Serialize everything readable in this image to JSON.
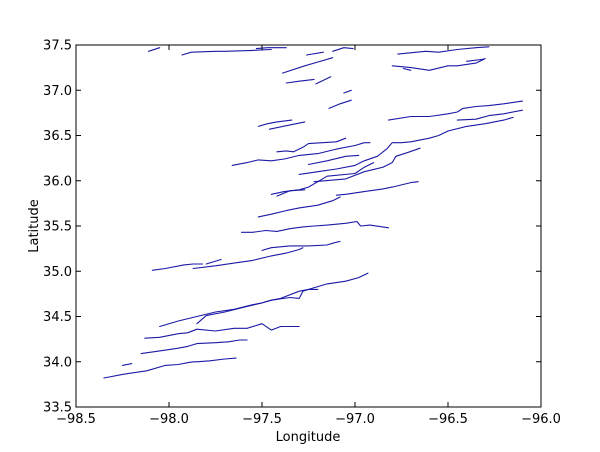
{
  "chart_data": {
    "type": "line",
    "title": "",
    "xlabel": "Longitude",
    "ylabel": "Latitude",
    "xlim": [
      -98.5,
      -96.0
    ],
    "ylim": [
      33.5,
      37.5
    ],
    "xticks": [
      -98.5,
      -98.0,
      -97.5,
      -97.0,
      -96.5,
      -96.0
    ],
    "yticks": [
      33.5,
      34.0,
      34.5,
      35.0,
      35.5,
      36.0,
      36.5,
      37.0,
      37.5
    ],
    "xtick_labels": [
      "−98.5",
      "−98.0",
      "−97.5",
      "−97.0",
      "−96.5",
      "−96.0"
    ],
    "ytick_labels": [
      "33.5",
      "34.0",
      "34.5",
      "35.0",
      "35.5",
      "36.0",
      "36.5",
      "37.0",
      "37.5"
    ],
    "grid": false,
    "line_color": "#1a1aa6",
    "series": [
      {
        "x": [
          -98.11,
          -98.05
        ],
        "y": [
          37.43,
          37.47
        ]
      },
      {
        "x": [
          -97.93,
          -97.88,
          -97.75,
          -97.7,
          -97.55,
          -97.45
        ],
        "y": [
          37.39,
          37.42,
          37.43,
          37.43,
          37.44,
          37.45
        ]
      },
      {
        "x": [
          -97.53,
          -97.47,
          -97.42,
          -97.37
        ],
        "y": [
          37.46,
          37.47,
          37.47,
          37.47
        ]
      },
      {
        "x": [
          -97.26,
          -97.17
        ],
        "y": [
          37.39,
          37.42
        ]
      },
      {
        "x": [
          -97.12,
          -97.06,
          -97.01
        ],
        "y": [
          37.43,
          37.47,
          37.46
        ]
      },
      {
        "x": [
          -96.77,
          -96.62,
          -96.55,
          -96.45
        ],
        "y": [
          37.4,
          37.43,
          37.42,
          37.45
        ]
      },
      {
        "x": [
          -96.8,
          -96.7,
          -96.6,
          -96.5,
          -96.45,
          -96.35,
          -96.3,
          -96.32,
          -96.4
        ],
        "y": [
          37.27,
          37.25,
          37.22,
          37.27,
          37.27,
          37.3,
          37.35,
          37.34,
          37.32
        ]
      },
      {
        "x": [
          -96.45,
          -96.35,
          -96.28
        ],
        "y": [
          37.45,
          37.47,
          37.48
        ]
      },
      {
        "x": [
          -96.74,
          -96.7
        ],
        "y": [
          37.24,
          37.22
        ]
      },
      {
        "x": [
          -97.39,
          -97.27,
          -97.22,
          -97.12
        ],
        "y": [
          37.19,
          37.27,
          37.3,
          37.36
        ]
      },
      {
        "x": [
          -97.37,
          -97.3,
          -97.22
        ],
        "y": [
          37.08,
          37.1,
          37.12
        ]
      },
      {
        "x": [
          -97.21,
          -97.13
        ],
        "y": [
          37.07,
          37.15
        ]
      },
      {
        "x": [
          -97.06,
          -97.02
        ],
        "y": [
          36.97,
          37.0
        ]
      },
      {
        "x": [
          -97.14,
          -97.08,
          -97.02
        ],
        "y": [
          36.8,
          36.85,
          36.89
        ]
      },
      {
        "x": [
          -97.52,
          -97.47,
          -97.42,
          -97.34
        ],
        "y": [
          36.6,
          36.63,
          36.65,
          36.67
        ]
      },
      {
        "x": [
          -97.46,
          -97.34,
          -97.27
        ],
        "y": [
          36.57,
          36.62,
          36.65
        ]
      },
      {
        "x": [
          -97.42,
          -97.37,
          -97.33,
          -97.28,
          -97.25,
          -97.1,
          -97.05
        ],
        "y": [
          36.32,
          36.33,
          36.32,
          36.37,
          36.41,
          36.43,
          36.47
        ]
      },
      {
        "x": [
          -97.66,
          -97.58,
          -97.52,
          -97.45,
          -97.38,
          -97.3,
          -97.2,
          -97.1,
          -97.0,
          -96.95,
          -96.92
        ],
        "y": [
          36.17,
          36.2,
          36.23,
          36.22,
          36.24,
          36.28,
          36.3,
          36.35,
          36.39,
          36.42,
          36.42
        ]
      },
      {
        "x": [
          -97.25,
          -97.15,
          -97.05,
          -96.98
        ],
        "y": [
          36.18,
          36.22,
          36.27,
          36.28
        ]
      },
      {
        "x": [
          -97.3,
          -97.2,
          -97.1,
          -97.0,
          -96.95,
          -96.88,
          -96.83,
          -96.8,
          -96.75,
          -96.7,
          -96.6,
          -96.55,
          -96.5,
          -96.4,
          -96.3,
          -96.2,
          -96.15
        ],
        "y": [
          36.07,
          36.1,
          36.13,
          36.17,
          36.22,
          36.27,
          36.35,
          36.42,
          36.42,
          36.43,
          36.47,
          36.5,
          36.55,
          36.6,
          36.63,
          36.67,
          36.7
        ]
      },
      {
        "x": [
          -96.82,
          -96.7,
          -96.6,
          -96.5,
          -96.45,
          -96.42,
          -96.35,
          -96.28,
          -96.2,
          -96.1
        ],
        "y": [
          36.67,
          36.71,
          36.71,
          36.74,
          36.76,
          36.8,
          36.82,
          36.83,
          36.85,
          36.88
        ]
      },
      {
        "x": [
          -96.45,
          -96.35,
          -96.28,
          -96.2,
          -96.1
        ],
        "y": [
          36.67,
          36.68,
          36.72,
          36.74,
          36.78
        ]
      },
      {
        "x": [
          -97.22,
          -97.05,
          -96.95,
          -96.85,
          -96.8,
          -96.78,
          -96.72,
          -96.65
        ],
        "y": [
          35.99,
          36.02,
          36.1,
          36.15,
          36.2,
          36.27,
          36.31,
          36.36
        ]
      },
      {
        "x": [
          -97.45,
          -97.38,
          -97.3,
          -97.25,
          -97.2,
          -97.15,
          -97.0,
          -96.95,
          -96.9
        ],
        "y": [
          35.85,
          35.88,
          35.9,
          35.93,
          35.99,
          36.05,
          36.08,
          36.15,
          36.2
        ]
      },
      {
        "x": [
          -97.42,
          -97.35,
          -97.27
        ],
        "y": [
          35.83,
          35.89,
          35.9
        ]
      },
      {
        "x": [
          -97.1,
          -97.05,
          -96.95,
          -96.85,
          -96.8,
          -96.7,
          -96.66
        ],
        "y": [
          35.84,
          35.85,
          35.88,
          35.91,
          35.93,
          35.98,
          35.99
        ]
      },
      {
        "x": [
          -97.52,
          -97.45,
          -97.37,
          -97.3,
          -97.2,
          -97.12,
          -97.08
        ],
        "y": [
          35.6,
          35.63,
          35.67,
          35.7,
          35.73,
          35.78,
          35.82
        ]
      },
      {
        "x": [
          -97.61,
          -97.55,
          -97.48,
          -97.42,
          -97.35,
          -97.28,
          -97.22,
          -97.15,
          -97.05,
          -96.99,
          -96.97,
          -96.92,
          -96.82
        ],
        "y": [
          35.43,
          35.43,
          35.45,
          35.44,
          35.47,
          35.49,
          35.5,
          35.51,
          35.53,
          35.55,
          35.5,
          35.51,
          35.48
        ]
      },
      {
        "x": [
          -97.5,
          -97.45,
          -97.35,
          -97.25,
          -97.15,
          -97.12,
          -97.08
        ],
        "y": [
          35.23,
          35.26,
          35.28,
          35.28,
          35.29,
          35.31,
          35.33
        ]
      },
      {
        "x": [
          -98.09,
          -98.02,
          -97.92,
          -97.87,
          -97.82
        ],
        "y": [
          35.01,
          35.03,
          35.07,
          35.08,
          35.08
        ]
      },
      {
        "x": [
          -97.87,
          -97.75,
          -97.65,
          -97.55,
          -97.45,
          -97.37,
          -97.3,
          -97.28
        ],
        "y": [
          35.03,
          35.06,
          35.09,
          35.12,
          35.17,
          35.2,
          35.24,
          35.26
        ]
      },
      {
        "x": [
          -97.8,
          -97.72
        ],
        "y": [
          35.08,
          35.13
        ]
      },
      {
        "x": [
          -98.05,
          -97.95,
          -97.85,
          -97.75,
          -97.65,
          -97.55,
          -97.5,
          -97.45,
          -97.4,
          -97.3,
          -97.25,
          -97.15,
          -97.05,
          -96.98,
          -96.93
        ],
        "y": [
          34.39,
          34.45,
          34.5,
          34.55,
          34.58,
          34.63,
          34.65,
          34.68,
          34.7,
          34.78,
          34.8,
          34.86,
          34.89,
          34.93,
          34.98
        ]
      },
      {
        "x": [
          -97.85,
          -97.8,
          -97.7,
          -97.6,
          -97.5,
          -97.45,
          -97.35,
          -97.3,
          -97.28,
          -97.25,
          -97.2
        ],
        "y": [
          34.42,
          34.51,
          34.55,
          34.6,
          34.65,
          34.68,
          34.71,
          34.7,
          34.78,
          34.8,
          34.8
        ]
      },
      {
        "x": [
          -98.13,
          -98.05,
          -97.95,
          -97.9,
          -97.85,
          -97.75,
          -97.65,
          -97.58,
          -97.5,
          -97.45,
          -97.4,
          -97.3
        ],
        "y": [
          34.26,
          34.27,
          34.31,
          34.32,
          34.36,
          34.34,
          34.37,
          34.37,
          34.42,
          34.35,
          34.39,
          34.39
        ]
      },
      {
        "x": [
          -98.15,
          -98.05,
          -97.95,
          -97.9,
          -97.85,
          -97.75,
          -97.68,
          -97.62,
          -97.58
        ],
        "y": [
          34.09,
          34.12,
          34.15,
          34.17,
          34.2,
          34.21,
          34.22,
          34.24,
          34.24
        ]
      },
      {
        "x": [
          -98.25,
          -98.2
        ],
        "y": [
          33.96,
          33.98
        ]
      },
      {
        "x": [
          -98.35,
          -98.25,
          -98.12,
          -98.02,
          -97.95,
          -97.9,
          -97.87,
          -97.85,
          -97.78,
          -97.7,
          -97.64
        ],
        "y": [
          33.82,
          33.86,
          33.9,
          33.96,
          33.97,
          33.99,
          34.0,
          34.0,
          34.01,
          34.03,
          34.04
        ]
      }
    ]
  }
}
